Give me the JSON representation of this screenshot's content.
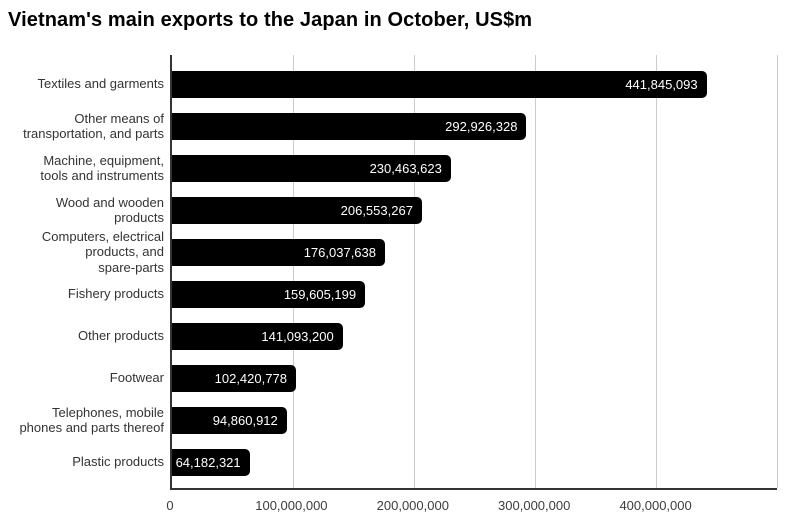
{
  "title": "Vietnam's main exports to the Japan in October, US$m",
  "chart_data": {
    "type": "bar",
    "orientation": "horizontal",
    "title": "Vietnam's main exports to the Japan in October, US$m",
    "categories": [
      "Textiles and garments",
      "Other means of\ntransportation, and parts",
      "Machine, equipment,\ntools and instruments",
      "Wood and wooden\nproducts",
      "Computers, electrical\nproducts, and\nspare-parts",
      "Fishery products",
      "Other products",
      "Footwear",
      "Telephones, mobile\nphones and parts thereof",
      "Plastic products"
    ],
    "values": [
      441845093,
      292926328,
      230463623,
      206553267,
      176037638,
      159605199,
      141093200,
      102420778,
      94860912,
      64182321
    ],
    "value_labels": [
      "441,845,093",
      "292,926,328",
      "230,463,623",
      "206,553,267",
      "176,037,638",
      "159,605,199",
      "141,093,200",
      "102,420,778",
      "94,860,912",
      "64,182,321"
    ],
    "x_ticks": [
      "0",
      "100,000,000",
      "200,000,000",
      "300,000,000",
      "400,000,000"
    ],
    "x_tick_values": [
      0,
      100000000,
      200000000,
      300000000,
      400000000
    ],
    "xlim": [
      0,
      500000000
    ],
    "xlabel": "",
    "ylabel": "",
    "grid": "vertical",
    "legend": "none",
    "colors": {
      "bar": "#000000",
      "bar_label": "#ffffff",
      "gridline": "#cccccc",
      "axis_line": "#333333",
      "tick_label": "#3d3d3d",
      "category_label": "#333333",
      "title": "#000000",
      "background": "#ffffff"
    }
  }
}
